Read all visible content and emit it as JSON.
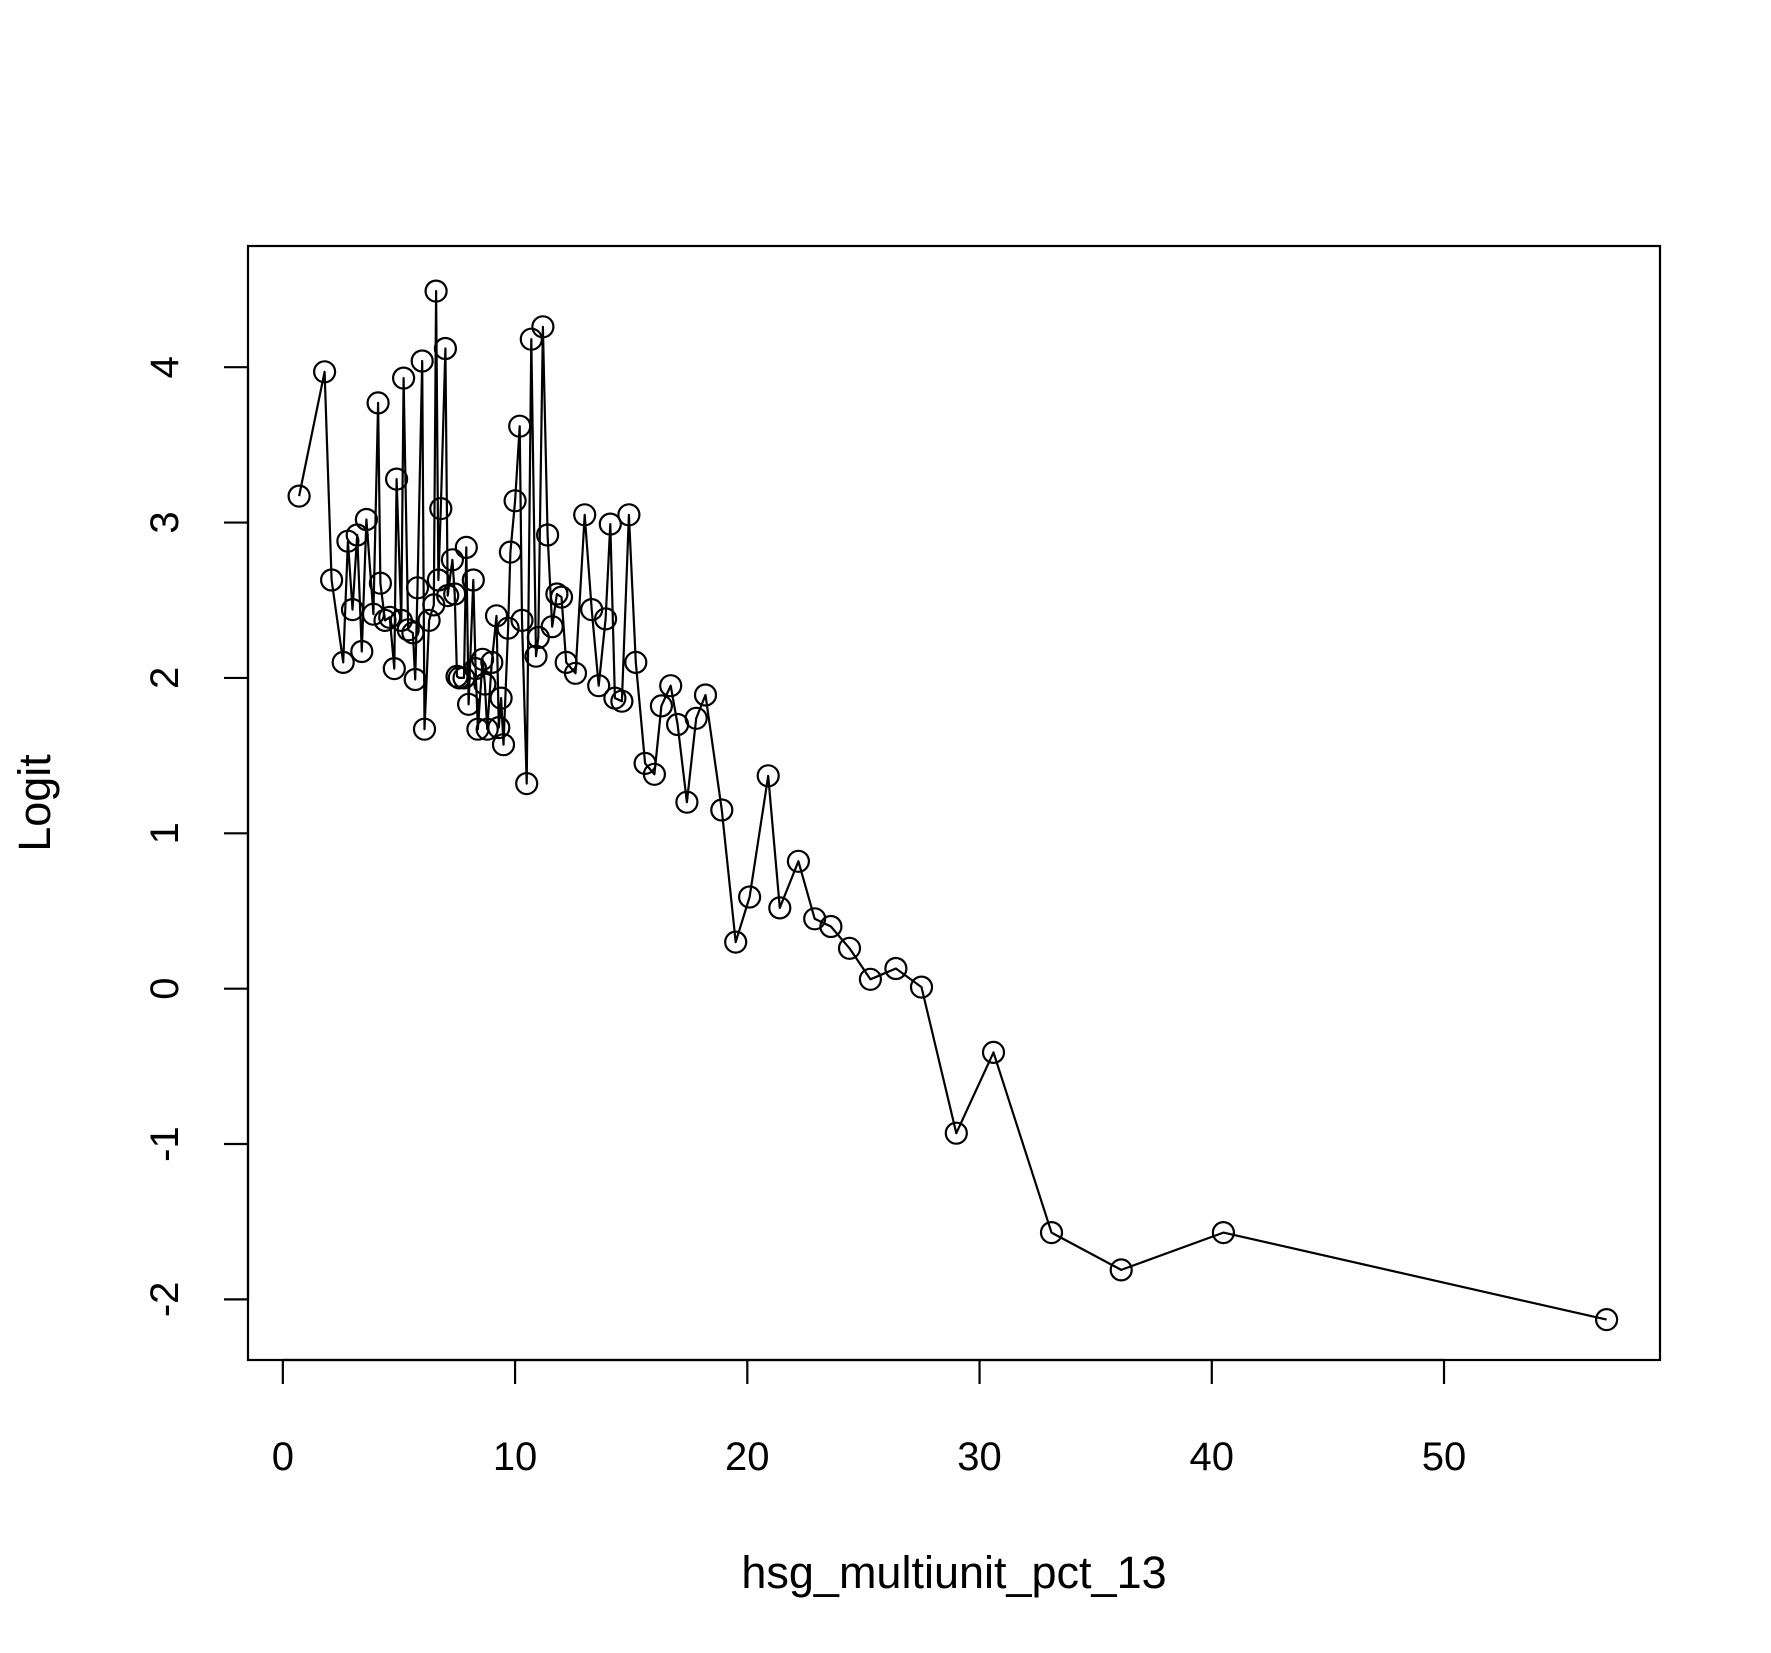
{
  "chart_data": {
    "type": "line",
    "markers": "open-circle",
    "title": "",
    "xlabel": "hsg_multiunit_pct_13",
    "ylabel": "Logit",
    "xlim": [
      -1.5,
      59.3
    ],
    "ylim": [
      -2.39,
      4.78
    ],
    "xticks": [
      0,
      10,
      20,
      30,
      40,
      50
    ],
    "yticks": [
      -2,
      -1,
      0,
      1,
      2,
      3,
      4
    ],
    "xtick_labels": [
      "0",
      "10",
      "20",
      "30",
      "40",
      "50"
    ],
    "ytick_labels": [
      "-2",
      "-1",
      "0",
      "1",
      "2",
      "3",
      "4"
    ],
    "grid": false,
    "line_color": "#000000",
    "series": [
      {
        "points": [
          [
            0.7,
            3.17
          ],
          [
            1.8,
            3.97
          ],
          [
            2.1,
            2.63
          ],
          [
            2.6,
            2.1
          ],
          [
            2.8,
            2.88
          ],
          [
            3.0,
            2.44
          ],
          [
            3.2,
            2.92
          ],
          [
            3.4,
            2.17
          ],
          [
            3.6,
            3.02
          ],
          [
            3.9,
            2.41
          ],
          [
            4.1,
            3.77
          ],
          [
            4.2,
            2.61
          ],
          [
            4.4,
            2.37
          ],
          [
            4.6,
            2.39
          ],
          [
            4.8,
            2.06
          ],
          [
            4.9,
            3.28
          ],
          [
            5.1,
            2.37
          ],
          [
            5.2,
            3.93
          ],
          [
            5.4,
            2.31
          ],
          [
            5.6,
            2.29
          ],
          [
            5.7,
            1.99
          ],
          [
            5.8,
            2.58
          ],
          [
            6.0,
            4.04
          ],
          [
            6.1,
            1.67
          ],
          [
            6.3,
            2.37
          ],
          [
            6.5,
            2.47
          ],
          [
            6.6,
            4.49
          ],
          [
            6.7,
            2.63
          ],
          [
            6.8,
            3.09
          ],
          [
            7.0,
            4.12
          ],
          [
            7.1,
            2.53
          ],
          [
            7.3,
            2.76
          ],
          [
            7.4,
            2.54
          ],
          [
            7.5,
            2.01
          ],
          [
            7.6,
            2.0
          ],
          [
            7.8,
            2.0
          ],
          [
            7.9,
            2.84
          ],
          [
            8.0,
            1.83
          ],
          [
            8.2,
            2.63
          ],
          [
            8.3,
            2.06
          ],
          [
            8.4,
            1.67
          ],
          [
            8.6,
            2.12
          ],
          [
            8.7,
            1.96
          ],
          [
            8.8,
            1.67
          ],
          [
            9.0,
            2.1
          ],
          [
            9.2,
            2.4
          ],
          [
            9.3,
            1.68
          ],
          [
            9.4,
            1.87
          ],
          [
            9.5,
            1.57
          ],
          [
            9.7,
            2.32
          ],
          [
            9.8,
            2.81
          ],
          [
            10.0,
            3.14
          ],
          [
            10.2,
            3.62
          ],
          [
            10.3,
            2.37
          ],
          [
            10.5,
            1.32
          ],
          [
            10.7,
            4.18
          ],
          [
            10.9,
            2.14
          ],
          [
            11.0,
            2.26
          ],
          [
            11.2,
            4.26
          ],
          [
            11.4,
            2.92
          ],
          [
            11.6,
            2.33
          ],
          [
            11.8,
            2.54
          ],
          [
            12.0,
            2.52
          ],
          [
            12.2,
            2.1
          ],
          [
            12.6,
            2.03
          ],
          [
            13.0,
            3.05
          ],
          [
            13.3,
            2.44
          ],
          [
            13.6,
            1.95
          ],
          [
            13.9,
            2.38
          ],
          [
            14.1,
            2.99
          ],
          [
            14.3,
            1.87
          ],
          [
            14.6,
            1.85
          ],
          [
            14.9,
            3.05
          ],
          [
            15.2,
            2.1
          ],
          [
            15.6,
            1.45
          ],
          [
            16.0,
            1.38
          ],
          [
            16.3,
            1.82
          ],
          [
            16.7,
            1.95
          ],
          [
            17.0,
            1.7
          ],
          [
            17.4,
            1.2
          ],
          [
            17.8,
            1.74
          ],
          [
            18.2,
            1.89
          ],
          [
            18.9,
            1.15
          ],
          [
            19.5,
            0.3
          ],
          [
            20.1,
            0.59
          ],
          [
            20.9,
            1.37
          ],
          [
            21.4,
            0.52
          ],
          [
            22.2,
            0.82
          ],
          [
            22.9,
            0.45
          ],
          [
            23.6,
            0.4
          ],
          [
            24.4,
            0.26
          ],
          [
            25.3,
            0.06
          ],
          [
            26.4,
            0.13
          ],
          [
            27.5,
            0.01
          ],
          [
            29.0,
            -0.93
          ],
          [
            30.6,
            -0.41
          ],
          [
            33.1,
            -1.57
          ],
          [
            36.1,
            -1.81
          ],
          [
            40.5,
            -1.57
          ],
          [
            57.0,
            -2.13
          ]
        ]
      }
    ]
  }
}
